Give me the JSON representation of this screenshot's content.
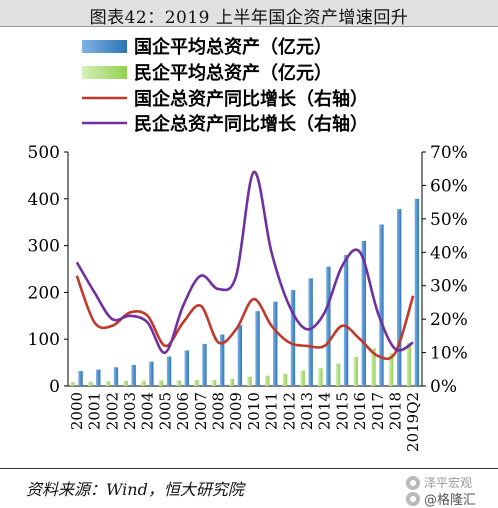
{
  "title": "图表42：2019 上半年国企资产增速回升",
  "source": "资料来源：Wind，恒大研究院",
  "watermark": {
    "line1": "泽平宏观",
    "line2": "@格隆汇"
  },
  "colors": {
    "soe_bar": "#2e75b6",
    "pe_bar": "#92d050",
    "soe_line": "#c0392b",
    "pe_line": "#7030a0"
  },
  "chart_data": {
    "type": "bar",
    "categories": [
      "2000",
      "2001",
      "2002",
      "2003",
      "2004",
      "2005",
      "2006",
      "2007",
      "2008",
      "2009",
      "2010",
      "2011",
      "2012",
      "2013",
      "2014",
      "2015",
      "2016",
      "2017",
      "2018",
      "2019Q2"
    ],
    "y_left": {
      "min": 0,
      "max": 500,
      "ticks": [
        0,
        100,
        200,
        300,
        400,
        500
      ]
    },
    "y_right": {
      "min": 0,
      "max": 70,
      "ticks": [
        "0%",
        "10%",
        "20%",
        "30%",
        "40%",
        "50%",
        "60%",
        "70%"
      ]
    },
    "legend": [
      "国企平均总资产（亿元）",
      "民企平均总资产（亿元）",
      "国企总资产同比增长（右轴）",
      "民企总资产同比增长（右轴）"
    ],
    "series": [
      {
        "name": "国企平均总资产（亿元）",
        "type": "bar",
        "axis": "left",
        "color": "#2e75b6",
        "values": [
          32,
          35,
          40,
          45,
          52,
          63,
          76,
          90,
          110,
          130,
          160,
          180,
          205,
          230,
          255,
          280,
          310,
          345,
          378,
          400
        ]
      },
      {
        "name": "民企平均总资产（亿元）",
        "type": "bar",
        "axis": "left",
        "color": "#92d050",
        "values": [
          8,
          9,
          10,
          11,
          11,
          12,
          12,
          13,
          13,
          15,
          20,
          22,
          26,
          33,
          38,
          48,
          62,
          80,
          70,
          92
        ]
      },
      {
        "name": "国企总资产同比增长（右轴）",
        "type": "line",
        "axis": "right",
        "color": "#c0392b",
        "values": [
          33,
          19,
          18,
          22,
          21,
          12,
          19,
          24,
          13,
          17,
          26,
          18,
          13,
          12,
          12,
          18,
          14,
          9,
          10,
          27
        ]
      },
      {
        "name": "民企总资产同比增长（右轴）",
        "type": "line",
        "axis": "right",
        "color": "#7030a0",
        "values": [
          37,
          28,
          20,
          21,
          19,
          10,
          24,
          33,
          29,
          33,
          64,
          40,
          24,
          17,
          22,
          36,
          40,
          22,
          11,
          13
        ]
      }
    ]
  }
}
